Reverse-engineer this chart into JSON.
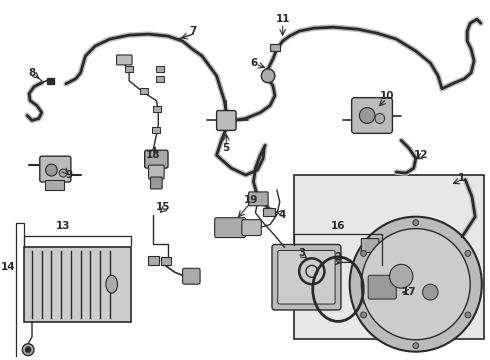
{
  "background_color": "#ffffff",
  "line_color": "#2a2a2a",
  "label_color": "#000000",
  "fig_width": 4.9,
  "fig_height": 3.6,
  "dpi": 100,
  "box_fill": "#e8e8e8",
  "part_fill": "#cccccc",
  "dark_fill": "#888888"
}
